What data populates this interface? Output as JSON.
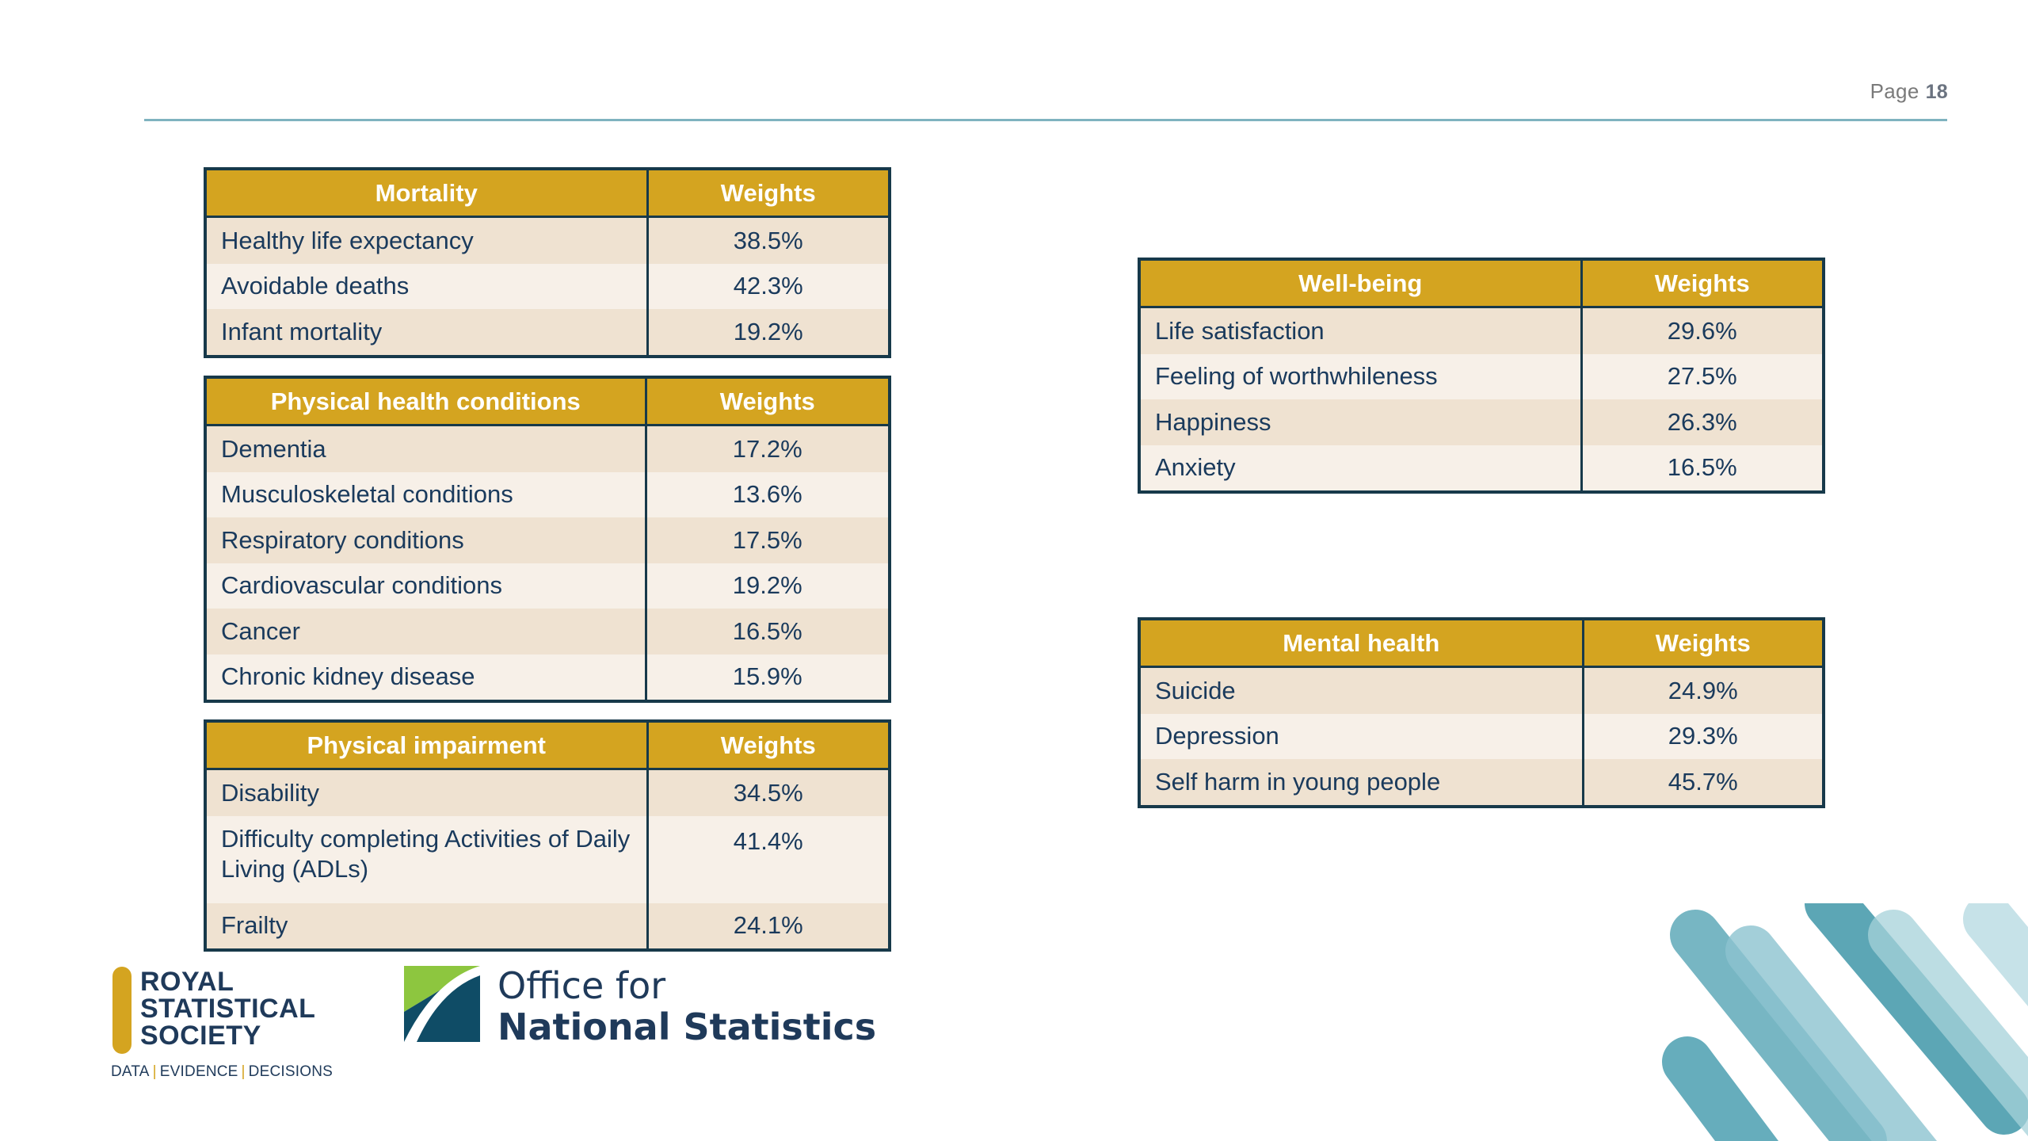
{
  "page": {
    "label": "Page",
    "number": "18"
  },
  "tables": {
    "mortality": {
      "header": "Mortality",
      "weights_header": "Weights",
      "rows": [
        {
          "label": "Healthy life expectancy",
          "value": "38.5%"
        },
        {
          "label": "Avoidable deaths",
          "value": "42.3%"
        },
        {
          "label": "Infant mortality",
          "value": "19.2%"
        }
      ]
    },
    "physical_health": {
      "header": "Physical health conditions",
      "weights_header": "Weights",
      "rows": [
        {
          "label": "Dementia",
          "value": "17.2%"
        },
        {
          "label": "Musculoskeletal conditions",
          "value": "13.6%"
        },
        {
          "label": "Respiratory conditions",
          "value": "17.5%"
        },
        {
          "label": "Cardiovascular conditions",
          "value": "19.2%"
        },
        {
          "label": "Cancer",
          "value": "16.5%"
        },
        {
          "label": "Chronic kidney disease",
          "value": "15.9%"
        }
      ]
    },
    "physical_impairment": {
      "header": "Physical impairment",
      "weights_header": "Weights",
      "rows": [
        {
          "label": "Disability",
          "value": "34.5%"
        },
        {
          "label": "Difficulty completing Activities of Daily Living (ADLs)",
          "value": "41.4%"
        },
        {
          "label": "Frailty",
          "value": "24.1%"
        }
      ]
    },
    "wellbeing": {
      "header": "Well-being",
      "weights_header": "Weights",
      "rows": [
        {
          "label": "Life satisfaction",
          "value": "29.6%"
        },
        {
          "label": "Feeling of worthwhileness",
          "value": "27.5%"
        },
        {
          "label": "Happiness",
          "value": "26.3%"
        },
        {
          "label": "Anxiety",
          "value": "16.5%"
        }
      ]
    },
    "mental_health": {
      "header": "Mental health",
      "weights_header": "Weights",
      "rows": [
        {
          "label": "Suicide",
          "value": "24.9%"
        },
        {
          "label": "Depression",
          "value": "29.3%"
        },
        {
          "label": "Self harm in young people",
          "value": "45.7%"
        }
      ]
    }
  },
  "logos": {
    "rss": {
      "lines": [
        "ROYAL",
        "STATISTICAL",
        "SOCIETY"
      ],
      "tagline": [
        "DATA",
        "EVIDENCE",
        "DECISIONS"
      ]
    },
    "ons": {
      "line1": "Office for",
      "line2": "National Statistics"
    }
  },
  "colors": {
    "header_gold": "#d4a420",
    "border_navy": "#17394a",
    "row_odd": "#efe2d1",
    "row_even": "#f7f0e8",
    "text_navy": "#1a3a5c",
    "rule_teal": "#7fb3c0"
  }
}
